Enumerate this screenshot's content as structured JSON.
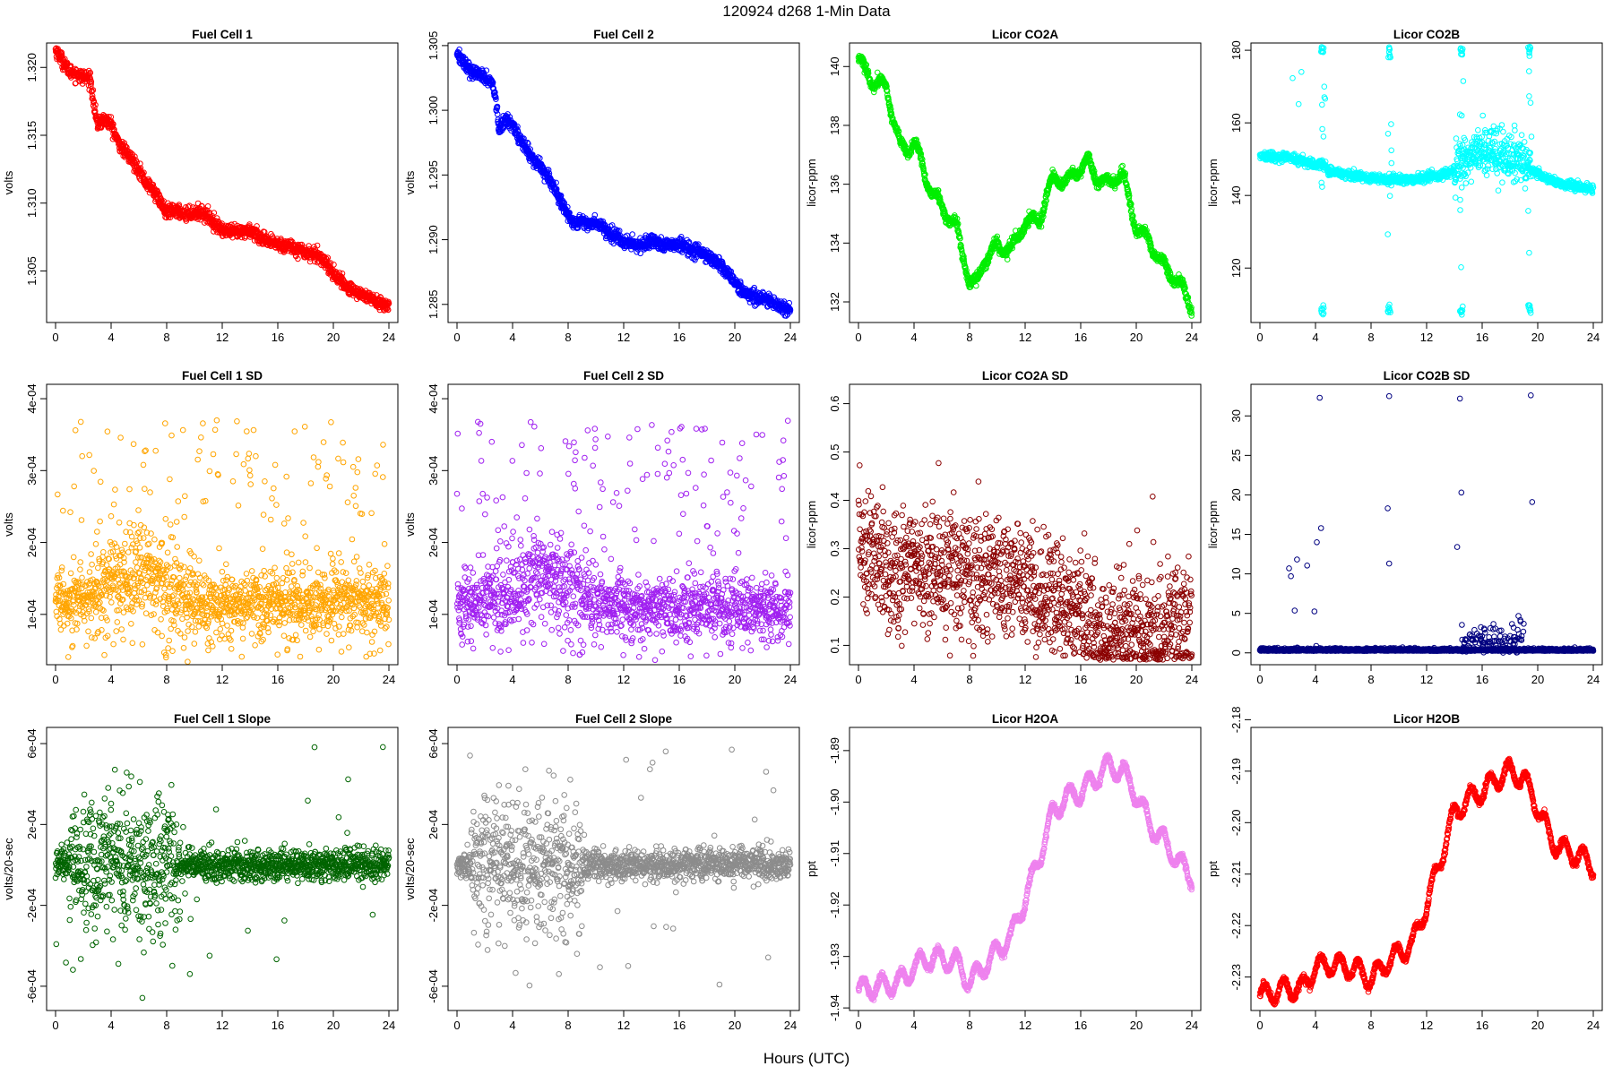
{
  "figure": {
    "title": "120924    d268    1-Min Data",
    "xlabel": "Hours (UTC)"
  },
  "chart_data": [
    {
      "type": "scatter",
      "title": "Fuel Cell 1",
      "ylabel": "volts",
      "color": "#ff0000",
      "x_ticks": [
        "0",
        "4",
        "8",
        "12",
        "16",
        "20",
        "24"
      ],
      "xlim": [
        0,
        24
      ],
      "ylim": [
        1.3012,
        1.3218
      ],
      "y_ticks": [
        "1.305",
        "1.310",
        "1.315",
        "1.320"
      ],
      "y_tick_values": [
        1.305,
        1.31,
        1.315,
        1.32
      ],
      "pattern": "trend",
      "noise": 0.00025,
      "series": [
        {
          "x": [
            0,
            0.5,
            1,
            1.5,
            2,
            2.5,
            2.8,
            3,
            3.5,
            4,
            4.5,
            5,
            5.5,
            6,
            6.5,
            7,
            7.5,
            8,
            8.5,
            9,
            9.5,
            10,
            10.5,
            11,
            11.5,
            12,
            13,
            14,
            14.5,
            15,
            16,
            17,
            18,
            19,
            19.5,
            20,
            21,
            22,
            23,
            24
          ],
          "y": [
            1.3213,
            1.3205,
            1.3197,
            1.3195,
            1.3193,
            1.3192,
            1.317,
            1.3158,
            1.3162,
            1.3158,
            1.3145,
            1.3138,
            1.3132,
            1.3125,
            1.3115,
            1.311,
            1.3102,
            1.3092,
            1.3095,
            1.3093,
            1.3092,
            1.3093,
            1.3093,
            1.309,
            1.3085,
            1.308,
            1.3078,
            1.308,
            1.3077,
            1.3072,
            1.307,
            1.3068,
            1.3064,
            1.3061,
            1.3056,
            1.3048,
            1.3038,
            1.3033,
            1.3028,
            1.3024
          ]
        }
      ]
    },
    {
      "type": "scatter",
      "title": "Fuel Cell 2",
      "ylabel": "volts",
      "color": "#0000ff",
      "x_ticks": [
        "0",
        "4",
        "8",
        "12",
        "16",
        "20",
        "24"
      ],
      "xlim": [
        0,
        24
      ],
      "ylim": [
        1.2836,
        1.3052
      ],
      "y_ticks": [
        "1.285",
        "1.290",
        "1.295",
        "1.300",
        "1.305"
      ],
      "y_tick_values": [
        1.285,
        1.29,
        1.295,
        1.3,
        1.305
      ],
      "pattern": "trend",
      "noise": 0.00025,
      "series": [
        {
          "x": [
            0,
            0.5,
            1,
            1.5,
            2,
            2.5,
            2.8,
            3,
            3.5,
            4,
            4.5,
            5,
            5.5,
            6,
            6.5,
            7,
            7.5,
            8,
            8.5,
            9,
            9.5,
            10,
            10.5,
            11,
            11.5,
            12,
            13,
            14,
            14.5,
            15,
            16,
            17,
            18,
            19,
            19.5,
            20,
            21,
            22,
            23,
            24
          ],
          "y": [
            1.3045,
            1.3037,
            1.303,
            1.3028,
            1.3025,
            1.3022,
            1.3008,
            1.2985,
            1.2993,
            1.299,
            1.2978,
            1.297,
            1.2962,
            1.2957,
            1.295,
            1.294,
            1.293,
            1.2918,
            1.2913,
            1.2915,
            1.2912,
            1.2913,
            1.291,
            1.2905,
            1.2903,
            1.2898,
            1.2896,
            1.2898,
            1.2896,
            1.2895,
            1.2897,
            1.2892,
            1.2888,
            1.288,
            1.2875,
            1.2866,
            1.2857,
            1.2855,
            1.285,
            1.2846
          ]
        }
      ]
    },
    {
      "type": "scatter",
      "title": "Licor CO2A",
      "ylabel": "licor-ppm",
      "color": "#00ee00",
      "x_ticks": [
        "0",
        "4",
        "8",
        "12",
        "16",
        "20",
        "24"
      ],
      "xlim": [
        0,
        24
      ],
      "ylim": [
        131.3,
        140.8
      ],
      "y_ticks": [
        "132",
        "134",
        "136",
        "138",
        "140"
      ],
      "y_tick_values": [
        132,
        134,
        136,
        138,
        140
      ],
      "pattern": "wave",
      "noise": 0.08,
      "series": [
        {
          "x": [
            0,
            0.5,
            1,
            2,
            3,
            3.5,
            4,
            5,
            6,
            7,
            8,
            8.5,
            9,
            10,
            11,
            12,
            13,
            14,
            15,
            16,
            16.5,
            17,
            18,
            19,
            20,
            21,
            22,
            23,
            24
          ],
          "y": [
            140.3,
            139.8,
            139.5,
            139.3,
            137.3,
            137.1,
            137.5,
            136.0,
            135.2,
            134.6,
            132.7,
            132.6,
            133.4,
            133.9,
            133.8,
            134.7,
            134.8,
            136.2,
            136.1,
            136.6,
            136.8,
            136.3,
            136.0,
            136.4,
            134.5,
            134.0,
            133.2,
            132.7,
            131.8
          ]
        }
      ]
    },
    {
      "type": "scatter",
      "title": "Licor CO2B",
      "ylabel": "licor-ppm",
      "color": "#00ffff",
      "x_ticks": [
        "0",
        "4",
        "8",
        "12",
        "16",
        "20",
        "24"
      ],
      "xlim": [
        0,
        24
      ],
      "ylim": [
        105,
        182
      ],
      "y_ticks": [
        "120",
        "140",
        "160",
        "180"
      ],
      "y_tick_values": [
        120,
        140,
        160,
        180
      ],
      "pattern": "co2b",
      "noise": 0.35,
      "series": [
        {
          "x": [
            0,
            1,
            2,
            3,
            4,
            4.5,
            5,
            6,
            7,
            8,
            9,
            10,
            11,
            12,
            13,
            14,
            15,
            16,
            17,
            18,
            19,
            19.5,
            20,
            21,
            22,
            23,
            24
          ],
          "y": [
            151,
            150.5,
            150.5,
            149.5,
            148.5,
            149,
            146.5,
            146,
            145.5,
            145,
            144.5,
            144.5,
            144.5,
            145,
            145.5,
            147,
            150,
            153,
            152,
            151,
            150.5,
            147,
            146,
            144,
            143,
            142.5,
            141.8
          ]
        }
      ]
    },
    {
      "type": "scatter",
      "title": "Fuel Cell 1 SD",
      "ylabel": "volts",
      "color": "#ffa500",
      "x_ticks": [
        "0",
        "4",
        "8",
        "12",
        "16",
        "20",
        "24"
      ],
      "xlim": [
        0,
        24
      ],
      "ylim": [
        3e-05,
        0.00042
      ],
      "y_ticks": [
        "1e-04",
        "2e-04",
        "3e-04",
        "4e-04"
      ],
      "y_tick_values": [
        0.0001,
        0.0002,
        0.0003,
        0.0004
      ],
      "pattern": "sd",
      "series": [
        {
          "x": [
            0,
            2,
            4,
            6,
            8,
            10,
            12,
            16,
            20,
            24
          ],
          "y": [
            0.00012,
            0.000125,
            0.00014,
            0.00016,
            0.000145,
            0.00012,
            0.000115,
            0.000115,
            0.000118,
            0.000118
          ]
        }
      ]
    },
    {
      "type": "scatter",
      "title": "Fuel Cell 2 SD",
      "ylabel": "volts",
      "color": "#a020f0",
      "x_ticks": [
        "0",
        "4",
        "8",
        "12",
        "16",
        "20",
        "24"
      ],
      "xlim": [
        0,
        24
      ],
      "ylim": [
        3e-05,
        0.00042
      ],
      "y_ticks": [
        "1e-04",
        "2e-04",
        "3e-04",
        "4e-04"
      ],
      "y_tick_values": [
        0.0001,
        0.0002,
        0.0003,
        0.0004
      ],
      "pattern": "sd",
      "series": [
        {
          "x": [
            0,
            2,
            4,
            6,
            8,
            10,
            12,
            16,
            20,
            24
          ],
          "y": [
            0.000115,
            0.00012,
            0.000135,
            0.00016,
            0.00014,
            0.000115,
            0.00011,
            0.00011,
            0.00011,
            0.000108
          ]
        }
      ]
    },
    {
      "type": "scatter",
      "title": "Licor CO2A SD",
      "ylabel": "licor-ppm",
      "color": "#8b0000",
      "x_ticks": [
        "0",
        "4",
        "8",
        "12",
        "16",
        "20",
        "24"
      ],
      "xlim": [
        0,
        24
      ],
      "ylim": [
        0.06,
        0.64
      ],
      "y_ticks": [
        "0.1",
        "0.2",
        "0.3",
        "0.4",
        "0.5",
        "0.6"
      ],
      "y_tick_values": [
        0.1,
        0.2,
        0.3,
        0.4,
        0.5,
        0.6
      ],
      "pattern": "sdwide",
      "series": [
        {
          "x": [
            0,
            2,
            4,
            6,
            8,
            10,
            12,
            14,
            16,
            17,
            18,
            20,
            22,
            24
          ],
          "y": [
            0.29,
            0.27,
            0.25,
            0.26,
            0.25,
            0.24,
            0.22,
            0.2,
            0.17,
            0.14,
            0.12,
            0.13,
            0.14,
            0.15
          ]
        }
      ]
    },
    {
      "type": "scatter",
      "title": "Licor CO2B SD",
      "ylabel": "licor-ppm",
      "color": "#000080",
      "x_ticks": [
        "0",
        "4",
        "8",
        "12",
        "16",
        "20",
        "24"
      ],
      "xlim": [
        0,
        24
      ],
      "ylim": [
        -1.5,
        34
      ],
      "y_ticks": [
        "0",
        "5",
        "10",
        "15",
        "20",
        "25",
        "30"
      ],
      "y_tick_values": [
        0,
        5,
        10,
        15,
        20,
        25,
        30
      ],
      "pattern": "sdspike",
      "series": [
        {
          "x": [
            0,
            24
          ],
          "y": [
            0.3,
            0.3
          ]
        }
      ]
    },
    {
      "type": "scatter",
      "title": "Fuel Cell 1 Slope",
      "ylabel": "volts/20-sec",
      "color": "#006400",
      "x_ticks": [
        "0",
        "4",
        "8",
        "12",
        "16",
        "20",
        "24"
      ],
      "xlim": [
        0,
        24
      ],
      "ylim": [
        -0.00072,
        0.00068
      ],
      "y_ticks": [
        "-6e-04",
        "-2e-04",
        "2e-04",
        "6e-04"
      ],
      "y_tick_values": [
        -0.0006,
        -0.0002,
        0.0002,
        0.0006
      ],
      "pattern": "slope",
      "series": [
        {
          "x": [
            0,
            24
          ],
          "y": [
            0,
            0
          ]
        }
      ]
    },
    {
      "type": "scatter",
      "title": "Fuel Cell 2 Slope",
      "ylabel": "volts/20-sec",
      "color": "#8c8c8c",
      "x_ticks": [
        "0",
        "4",
        "8",
        "12",
        "16",
        "20",
        "24"
      ],
      "xlim": [
        0,
        24
      ],
      "ylim": [
        -0.00072,
        0.00068
      ],
      "y_ticks": [
        "-6e-04",
        "-2e-04",
        "2e-04",
        "6e-04"
      ],
      "y_tick_values": [
        -0.0006,
        -0.0002,
        0.0002,
        0.0006
      ],
      "pattern": "slope",
      "series": [
        {
          "x": [
            0,
            24
          ],
          "y": [
            0,
            0
          ]
        }
      ]
    },
    {
      "type": "scatter",
      "title": "Licor H2OA",
      "ylabel": "ppt",
      "color": "#ee82ee",
      "x_ticks": [
        "0",
        "4",
        "8",
        "12",
        "16",
        "20",
        "24"
      ],
      "xlim": [
        0,
        24
      ],
      "ylim": [
        -1.9405,
        -1.8855
      ],
      "y_ticks": [
        "-1.94",
        "-1.93",
        "-1.92",
        "-1.91",
        "-1.90",
        "-1.89"
      ],
      "y_tick_values": [
        -1.94,
        -1.93,
        -1.92,
        -1.91,
        -1.9,
        -1.89
      ],
      "pattern": "wave2",
      "noise": 0.0003,
      "series": [
        {
          "x": [
            0,
            1,
            2,
            3,
            4,
            5,
            6,
            7,
            8,
            9,
            10,
            11,
            12,
            13,
            14,
            15,
            16,
            17,
            18,
            19,
            20,
            21,
            22,
            23,
            24
          ],
          "y": [
            -1.9365,
            -1.936,
            -1.9355,
            -1.935,
            -1.932,
            -1.9305,
            -1.9305,
            -1.931,
            -1.935,
            -1.932,
            -1.929,
            -1.926,
            -1.919,
            -1.911,
            -1.902,
            -1.899,
            -1.898,
            -1.8955,
            -1.893,
            -1.894,
            -1.8985,
            -1.9045,
            -1.9075,
            -1.9115,
            -1.9145
          ]
        }
      ]
    },
    {
      "type": "scatter",
      "title": "Licor H2OB",
      "ylabel": "ppt",
      "color": "#ff0000",
      "x_ticks": [
        "0",
        "4",
        "8",
        "12",
        "16",
        "20",
        "24"
      ],
      "xlim": [
        0,
        24
      ],
      "ylim": [
        -2.2365,
        -2.1815
      ],
      "y_ticks": [
        "-2.23",
        "-2.22",
        "-2.21",
        "-2.20",
        "-2.19",
        "-2.18"
      ],
      "y_tick_values": [
        -2.23,
        -2.22,
        -2.21,
        -2.2,
        -2.19,
        -2.18
      ],
      "pattern": "wave2",
      "noise": 0.0003,
      "series": [
        {
          "x": [
            0,
            1,
            2,
            3,
            4,
            5,
            6,
            7,
            8,
            9,
            10,
            11,
            12,
            13,
            14,
            15,
            16,
            17,
            18,
            19,
            20,
            21,
            22,
            23,
            24
          ],
          "y": [
            -2.2335,
            -2.233,
            -2.232,
            -2.2325,
            -2.228,
            -2.2275,
            -2.228,
            -2.2285,
            -2.2305,
            -2.2275,
            -2.2255,
            -2.2235,
            -2.216,
            -2.207,
            -2.198,
            -2.1955,
            -2.194,
            -2.1915,
            -2.19,
            -2.1915,
            -2.197,
            -2.2035,
            -2.2055,
            -2.2065,
            -2.2085
          ]
        }
      ]
    }
  ]
}
